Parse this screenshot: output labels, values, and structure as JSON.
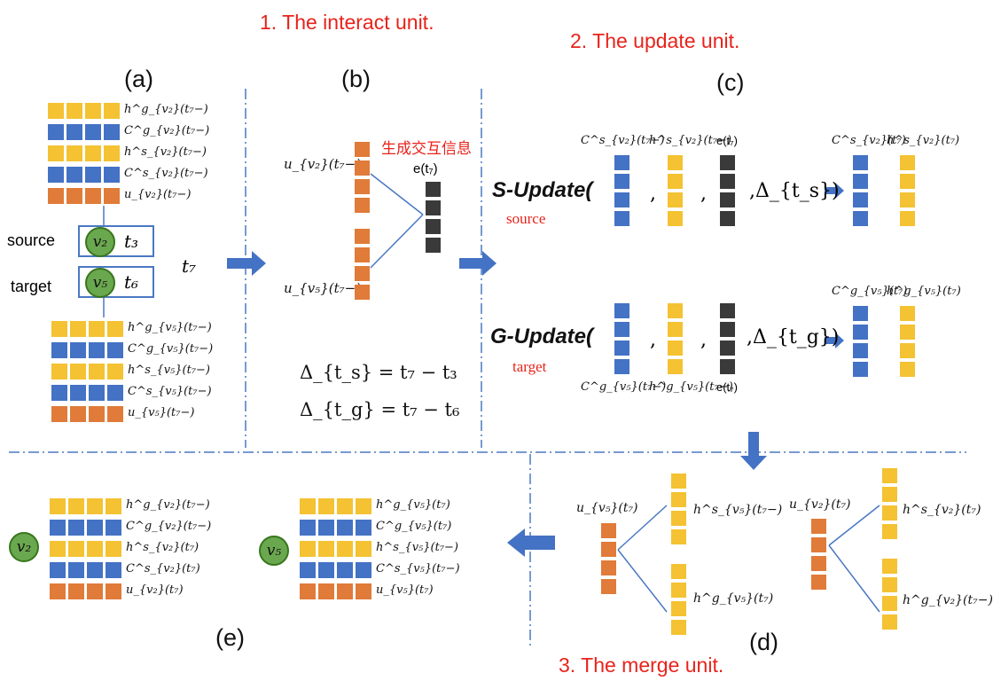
{
  "colors": {
    "yellow": "#f4c232",
    "blue": "#4472c4",
    "orange": "#e07b39",
    "dark": "#3a3a3a",
    "green": "#6aa84f",
    "divider": "#4a78c2",
    "arrow": "#4472c4",
    "red": "#e8231b"
  },
  "titles": {
    "interact": "1. The interact unit.",
    "update": "2. The update unit.",
    "merge": "3. The merge unit."
  },
  "panel_labels": {
    "a": "(a)",
    "b": "(b)",
    "c": "(c)",
    "d": "(d)",
    "e": "(e)"
  },
  "panel_a": {
    "source_label": "source",
    "target_label": "target",
    "node_v2": "v₂",
    "node_v5": "v₅",
    "t3": "t₃",
    "t6": "t₆",
    "t7": "t₇",
    "top_rows": [
      "h^g_{v₂}(t₇−)",
      "C^g_{v₂}(t₇−)",
      "h^s_{v₂}(t₇−)",
      "C^s_{v₂}(t₇−)",
      "u_{v₂}(t₇−)"
    ],
    "bottom_rows": [
      "h^g_{v₅}(t₇−)",
      "C^g_{v₅}(t₇−)",
      "h^s_{v₅}(t₇−)",
      "C^s_{v₅}(t₇−)",
      "u_{v₅}(t₇−)"
    ]
  },
  "panel_b": {
    "u_v2": "u_{v₂}(t₇−)",
    "u_v5": "u_{v₅}(t₇−)",
    "e": "e(t₇)",
    "chinese": "生成交互信息",
    "eq1": "Δ_{t_s} = t₇ − t₃",
    "eq2": "Δ_{t_g} = t₇ − t₆"
  },
  "panel_c": {
    "s_update": "S-Update(",
    "g_update": "G-Update(",
    "source": "source",
    "target": "target",
    "delta_s": ",Δ_{t_s})",
    "delta_g": ",Δ_{t_g})",
    "s_labels": [
      "C^s_{v₂}(t₇−)",
      "h^s_{v₂}(t₇−)",
      "e(t₇)"
    ],
    "g_labels": [
      "C^g_{v₅}(t₇−)",
      "h^g_{v₅}(t₇−)",
      "e(t₇)"
    ],
    "s_out": [
      "C^s_{v₂}(t₇)",
      "h^s_{v₂}(t₇)"
    ],
    "g_out": [
      "C^g_{v₅}(t₇)",
      "h^g_{v₅}(t₇)"
    ]
  },
  "panel_d": {
    "u_v5": "u_{v₅}(t₇)",
    "h_s_v5": "h^s_{v₅}(t₇−)",
    "h_g_v5": "h^g_{v₅}(t₇)",
    "u_v2": "u_{v₂}(t₇)",
    "h_s_v2": "h^s_{v₂}(t₇)",
    "h_g_v2": "h^g_{v₂}(t₇−)"
  },
  "panel_e": {
    "node_v2": "v₂",
    "node_v5": "v₅",
    "v2_rows": [
      "h^g_{v₂}(t₇−)",
      "C^g_{v₂}(t₇−)",
      "h^s_{v₂}(t₇)",
      "C^s_{v₂}(t₇)",
      "u_{v₂}(t₇)"
    ],
    "v5_rows": [
      "h^g_{v₅}(t₇)",
      "C^g_{v₅}(t₇)",
      "h^s_{v₅}(t₇−)",
      "C^s_{v₅}(t₇−)",
      "u_{v₅}(t₇)"
    ]
  }
}
